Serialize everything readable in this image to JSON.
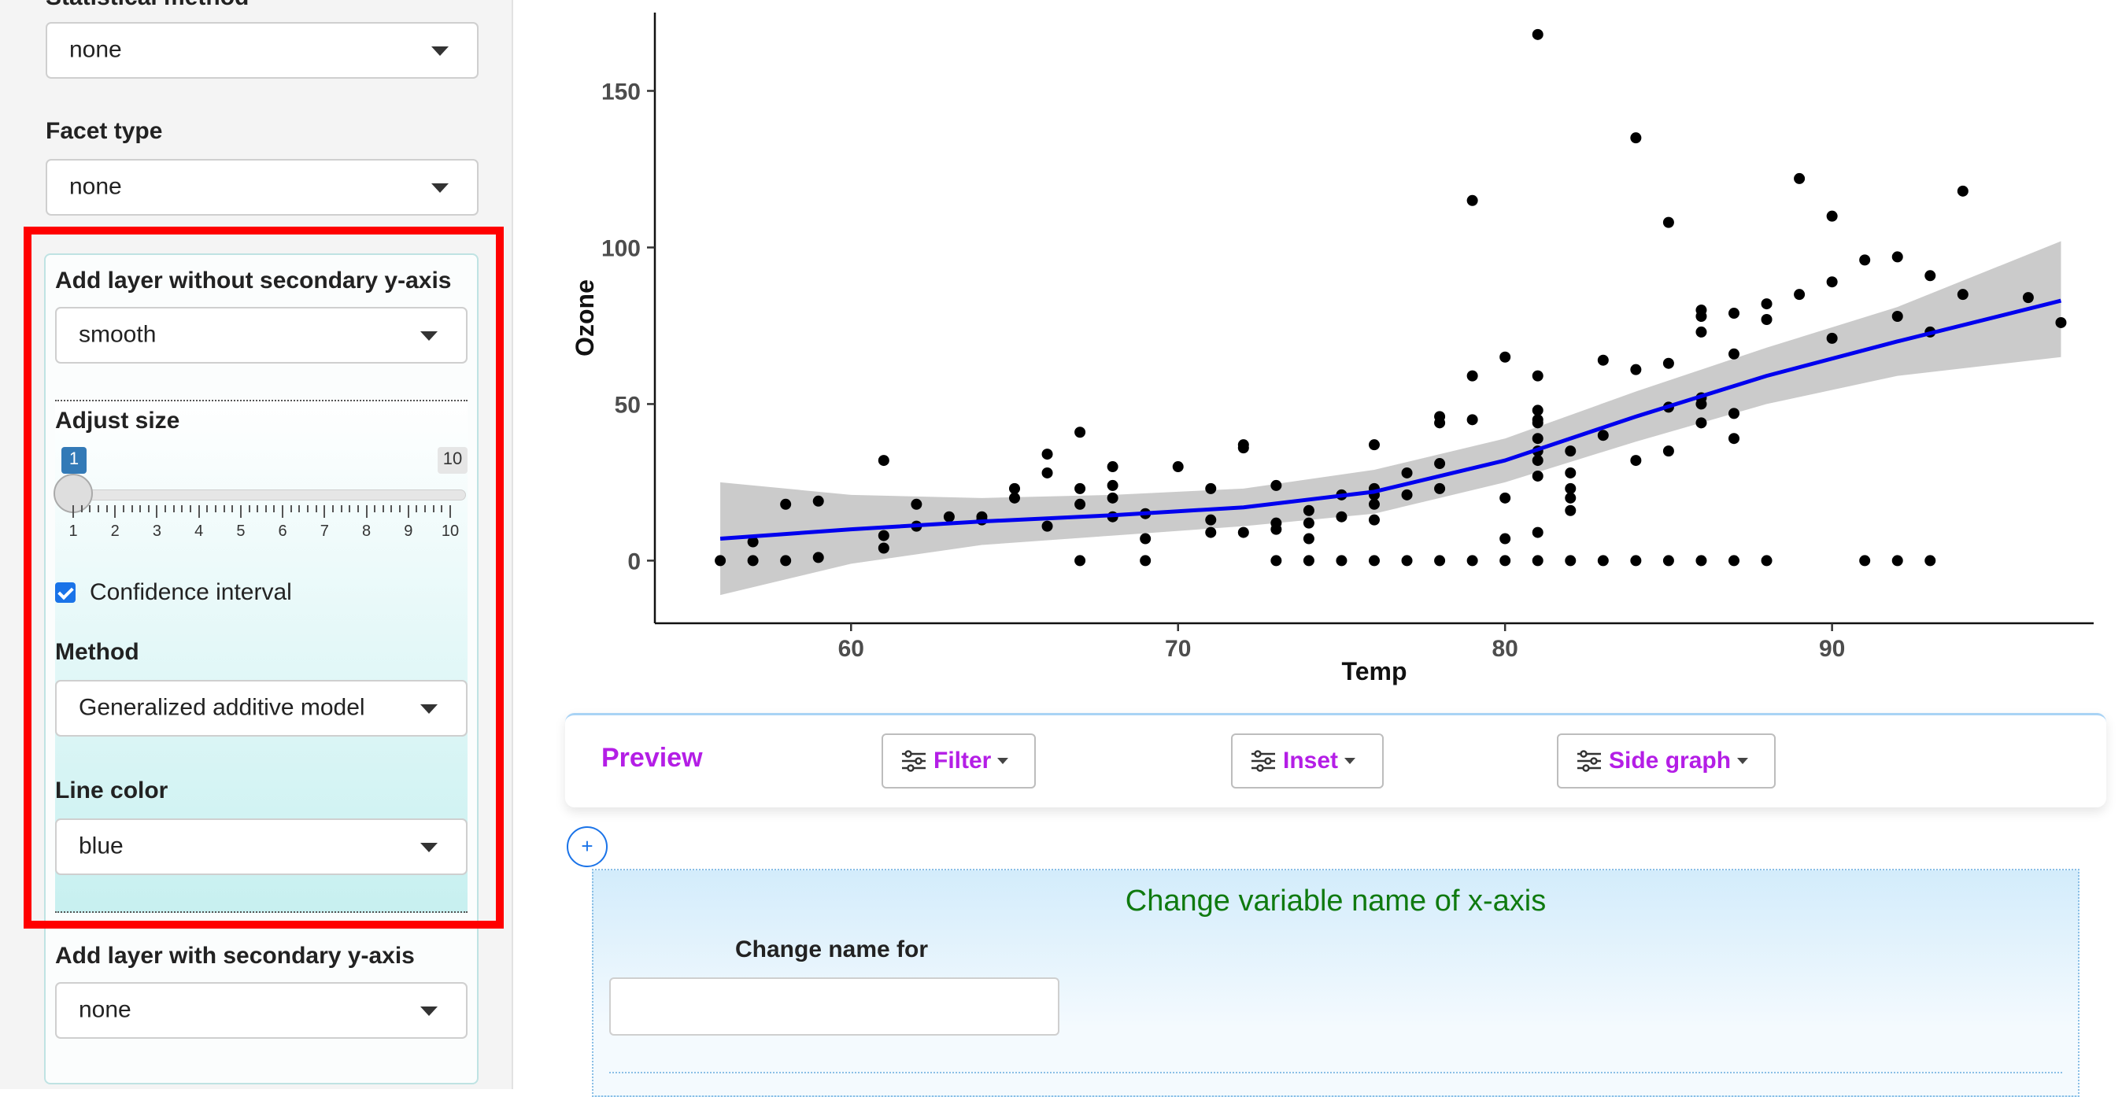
{
  "sidebar": {
    "statistical_method": {
      "label": "Statistical method",
      "value": "none"
    },
    "facet_type": {
      "label": "Facet type",
      "value": "none"
    },
    "layer_without_secondary": {
      "label": "Add layer without secondary y-axis",
      "value": "smooth",
      "adjust_size": {
        "label": "Adjust size",
        "min": 1,
        "max": 10,
        "value": 1,
        "min_label": "1",
        "max_label": "10",
        "tick_labels": [
          "1",
          "2",
          "3",
          "4",
          "5",
          "6",
          "7",
          "8",
          "9",
          "10"
        ]
      },
      "confidence_interval": {
        "label": "Confidence interval",
        "checked": true
      },
      "method": {
        "label": "Method",
        "value": "Generalized additive model"
      },
      "line_color": {
        "label": "Line color",
        "value": "blue"
      }
    },
    "layer_with_secondary": {
      "label": "Add layer with secondary y-axis",
      "value": "none"
    }
  },
  "chart_data": {
    "type": "scatter",
    "xlabel": "Temp",
    "ylabel": "Ozone",
    "xlim": [
      54,
      98
    ],
    "ylim": [
      -20,
      175
    ],
    "xticks": [
      60,
      70,
      80,
      90
    ],
    "yticks": [
      0,
      50,
      100,
      150
    ],
    "grid": false,
    "point_color": "#000000",
    "points": [
      [
        56,
        0
      ],
      [
        57,
        0
      ],
      [
        57,
        6
      ],
      [
        58,
        0
      ],
      [
        58,
        18
      ],
      [
        59,
        1
      ],
      [
        59,
        19
      ],
      [
        61,
        4
      ],
      [
        61,
        8
      ],
      [
        61,
        32
      ],
      [
        62,
        11
      ],
      [
        62,
        18
      ],
      [
        63,
        14
      ],
      [
        64,
        14
      ],
      [
        64,
        13
      ],
      [
        65,
        20
      ],
      [
        65,
        23
      ],
      [
        66,
        11
      ],
      [
        66,
        28
      ],
      [
        66,
        34
      ],
      [
        67,
        0
      ],
      [
        67,
        18
      ],
      [
        67,
        23
      ],
      [
        67,
        41
      ],
      [
        68,
        14
      ],
      [
        68,
        20
      ],
      [
        68,
        24
      ],
      [
        68,
        30
      ],
      [
        69,
        0
      ],
      [
        69,
        7
      ],
      [
        69,
        15
      ],
      [
        70,
        30
      ],
      [
        71,
        9
      ],
      [
        71,
        13
      ],
      [
        71,
        23
      ],
      [
        72,
        9
      ],
      [
        72,
        36
      ],
      [
        72,
        37
      ],
      [
        73,
        0
      ],
      [
        73,
        10
      ],
      [
        73,
        12
      ],
      [
        73,
        24
      ],
      [
        74,
        0
      ],
      [
        74,
        7
      ],
      [
        74,
        12
      ],
      [
        74,
        16
      ],
      [
        75,
        0
      ],
      [
        75,
        14
      ],
      [
        75,
        21
      ],
      [
        76,
        0
      ],
      [
        76,
        13
      ],
      [
        76,
        18
      ],
      [
        76,
        21
      ],
      [
        76,
        23
      ],
      [
        76,
        37
      ],
      [
        77,
        0
      ],
      [
        77,
        21
      ],
      [
        77,
        28
      ],
      [
        78,
        0
      ],
      [
        78,
        23
      ],
      [
        78,
        31
      ],
      [
        78,
        44
      ],
      [
        78,
        46
      ],
      [
        79,
        0
      ],
      [
        79,
        45
      ],
      [
        79,
        59
      ],
      [
        79,
        115
      ],
      [
        80,
        0
      ],
      [
        80,
        7
      ],
      [
        80,
        20
      ],
      [
        80,
        65
      ],
      [
        81,
        0
      ],
      [
        81,
        9
      ],
      [
        81,
        27
      ],
      [
        81,
        32
      ],
      [
        81,
        35
      ],
      [
        81,
        39
      ],
      [
        81,
        44
      ],
      [
        81,
        45
      ],
      [
        81,
        48
      ],
      [
        81,
        59
      ],
      [
        81,
        168
      ],
      [
        82,
        0
      ],
      [
        82,
        16
      ],
      [
        82,
        20
      ],
      [
        82,
        23
      ],
      [
        82,
        28
      ],
      [
        82,
        35
      ],
      [
        83,
        0
      ],
      [
        83,
        40
      ],
      [
        83,
        64
      ],
      [
        84,
        0
      ],
      [
        84,
        32
      ],
      [
        84,
        61
      ],
      [
        84,
        135
      ],
      [
        85,
        0
      ],
      [
        85,
        35
      ],
      [
        85,
        49
      ],
      [
        85,
        63
      ],
      [
        85,
        108
      ],
      [
        86,
        0
      ],
      [
        86,
        44
      ],
      [
        86,
        50
      ],
      [
        86,
        52
      ],
      [
        86,
        73
      ],
      [
        86,
        78
      ],
      [
        86,
        80
      ],
      [
        87,
        0
      ],
      [
        87,
        39
      ],
      [
        87,
        47
      ],
      [
        87,
        66
      ],
      [
        87,
        79
      ],
      [
        88,
        0
      ],
      [
        88,
        77
      ],
      [
        88,
        82
      ],
      [
        89,
        85
      ],
      [
        89,
        122
      ],
      [
        90,
        71
      ],
      [
        90,
        89
      ],
      [
        90,
        110
      ],
      [
        91,
        0
      ],
      [
        91,
        96
      ],
      [
        92,
        0
      ],
      [
        92,
        78
      ],
      [
        92,
        97
      ],
      [
        93,
        0
      ],
      [
        93,
        73
      ],
      [
        93,
        91
      ],
      [
        94,
        85
      ],
      [
        94,
        118
      ],
      [
        96,
        84
      ],
      [
        97,
        76
      ]
    ],
    "smooth": {
      "color": "blue",
      "ribbon_color": "#c8c8c8",
      "x": [
        56,
        60,
        64,
        68,
        72,
        76,
        80,
        84,
        88,
        92,
        97
      ],
      "y": [
        7,
        10,
        12.5,
        14.5,
        17,
        22,
        32,
        46,
        59,
        70,
        83
      ],
      "lower": [
        -11,
        -1,
        5,
        8,
        11,
        15,
        25,
        38,
        50,
        59,
        65
      ],
      "upper": [
        25,
        21,
        20,
        21,
        23,
        29,
        39,
        54,
        68,
        81,
        102
      ]
    }
  },
  "preview_bar": {
    "title": "Preview",
    "buttons": [
      "Filter",
      "Inset",
      "Side graph"
    ]
  },
  "add_button": {
    "label": "+"
  },
  "rename_panel": {
    "title": "Change variable name of x-axis",
    "field_label": "Change name for",
    "field_value": ""
  },
  "colors": {
    "accent_purple": "#b41ee6",
    "highlight_red": "#ff0000",
    "title_green": "#0f7a0f"
  }
}
